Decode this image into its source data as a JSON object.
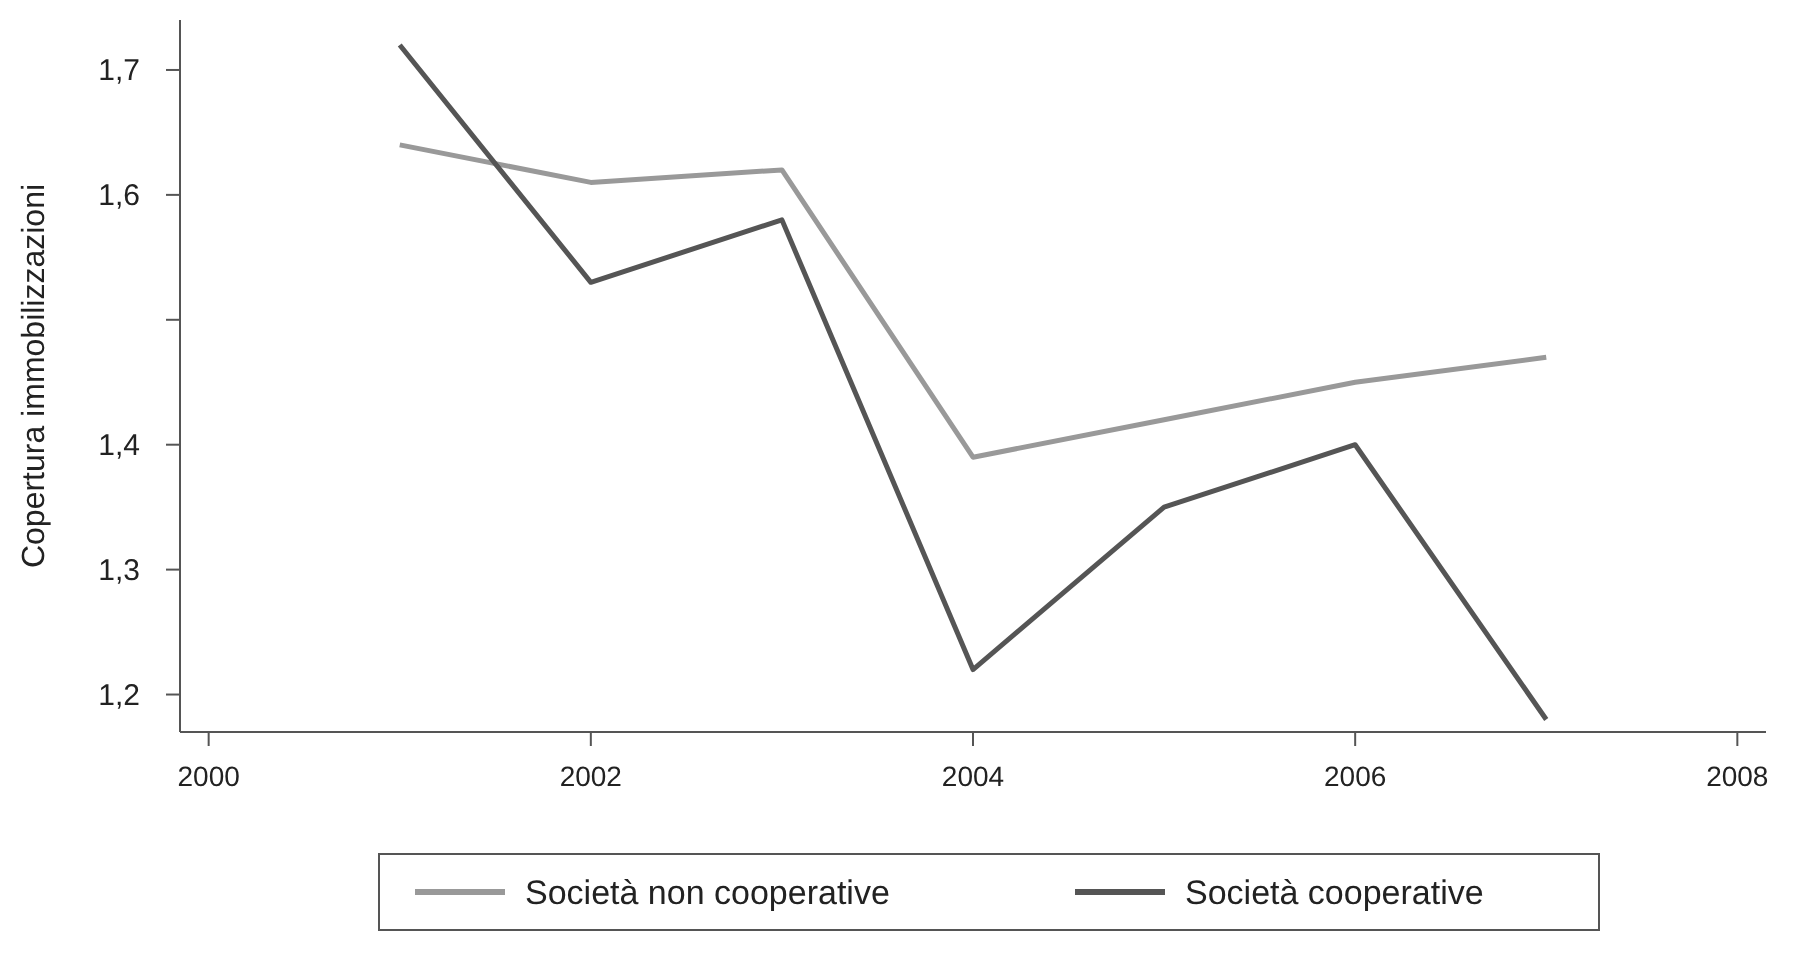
{
  "chart_data": {
    "type": "line",
    "ylabel": "Copertura immobilizzazioni",
    "x": [
      2001,
      2002,
      2003,
      2004,
      2005,
      2006,
      2007
    ],
    "series": [
      {
        "name": "Società non cooperative",
        "color": "#999999",
        "values": [
          1.64,
          1.61,
          1.62,
          1.39,
          1.42,
          1.45,
          1.47
        ]
      },
      {
        "name": "Società cooperative",
        "color": "#555555",
        "values": [
          1.72,
          1.53,
          1.58,
          1.22,
          1.35,
          1.4,
          1.18
        ]
      }
    ],
    "xlim": [
      1999.85,
      2008.15
    ],
    "xticks": [
      2000,
      2002,
      2004,
      2006,
      2008
    ],
    "ylim": [
      1.17,
      1.74
    ],
    "yticks": [
      {
        "value": 1.7,
        "label": "1,7"
      },
      {
        "value": 1.6,
        "label": "1,6"
      },
      {
        "value": 1.5,
        "label": null
      },
      {
        "value": 1.4,
        "label": "1,4"
      },
      {
        "value": 1.3,
        "label": "1,3"
      },
      {
        "value": 1.2,
        "label": "1,2"
      }
    ],
    "grid": false,
    "legend": "bottom",
    "marker": "none",
    "line_style": "solid"
  }
}
